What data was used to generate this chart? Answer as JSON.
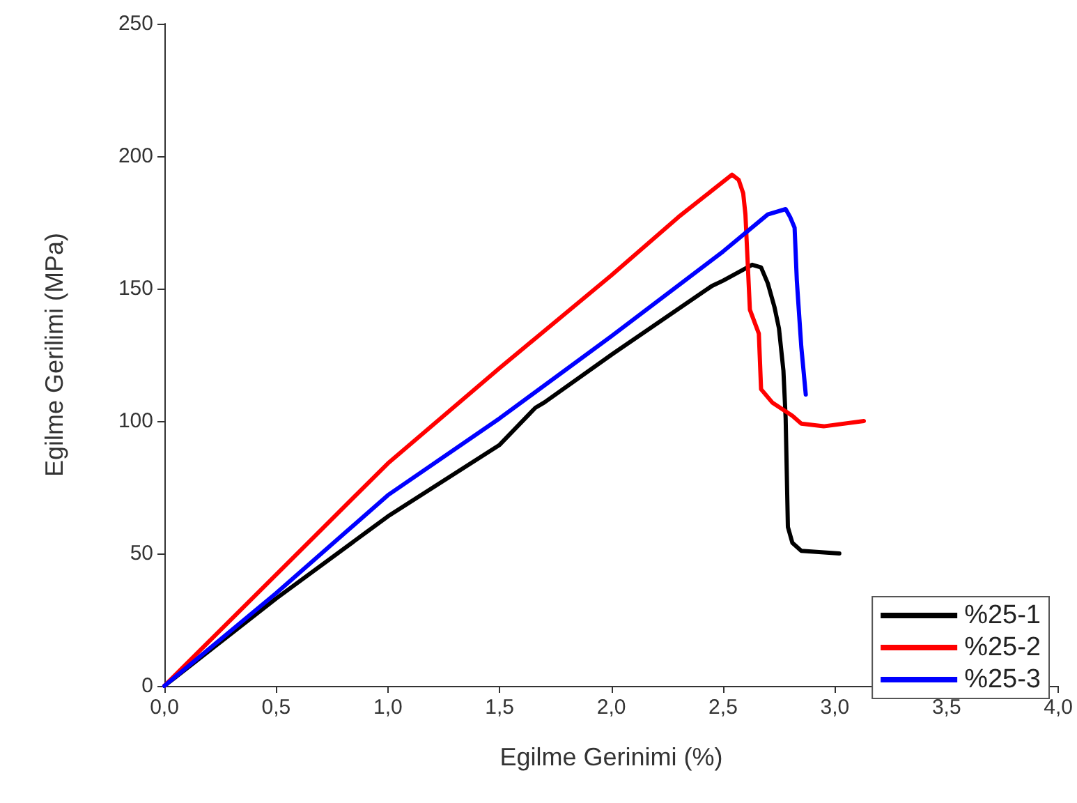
{
  "chart_data": {
    "type": "line",
    "xlabel": "Egilme Gerinimi (%)",
    "ylabel": "Egilme Gerilimi (MPa)",
    "xlim": [
      0,
      4
    ],
    "xticks": [
      {
        "value": 0,
        "label": "0,0"
      },
      {
        "value": 0.5,
        "label": "0,5"
      },
      {
        "value": 1,
        "label": "1,0"
      },
      {
        "value": 1.5,
        "label": "1,5"
      },
      {
        "value": 2,
        "label": "2,0"
      },
      {
        "value": 2.5,
        "label": "2,5"
      },
      {
        "value": 3,
        "label": "3,0"
      },
      {
        "value": 3.5,
        "label": "3,5"
      },
      {
        "value": 4,
        "label": "4,0"
      }
    ],
    "ylim": [
      0,
      250
    ],
    "yticks": [
      0,
      50,
      100,
      150,
      200,
      250
    ],
    "grid": false,
    "legend": "bottom right",
    "marker": "none",
    "line_style": "solid",
    "series": [
      {
        "name": "%25-1",
        "color": "#000000",
        "x": [
          0,
          0.5,
          1.0,
          1.5,
          1.66,
          1.7,
          2.0,
          2.45,
          2.5,
          2.63,
          2.67,
          2.7,
          2.73,
          2.75,
          2.77,
          2.78,
          2.79,
          2.81,
          2.85,
          3.02
        ],
        "values": [
          0,
          33,
          64,
          91,
          105,
          107,
          125,
          151,
          153,
          159,
          158,
          152,
          143,
          135,
          119,
          101,
          60,
          54,
          51,
          50
        ]
      },
      {
        "name": "%25-2",
        "color": "#ff0000",
        "x": [
          0,
          0.5,
          1.0,
          1.5,
          2.0,
          2.3,
          2.45,
          2.54,
          2.57,
          2.59,
          2.6,
          2.62,
          2.66,
          2.67,
          2.72,
          2.81,
          2.85,
          2.95,
          3.13
        ],
        "values": [
          0,
          42,
          84,
          120,
          155,
          177,
          187,
          193,
          191,
          186,
          178,
          142,
          133,
          112,
          107,
          102,
          99,
          98,
          100
        ]
      },
      {
        "name": "%25-3",
        "color": "#0000ff",
        "x": [
          0,
          0.5,
          1.0,
          1.5,
          2.0,
          2.5,
          2.7,
          2.78,
          2.8,
          2.82,
          2.83,
          2.85,
          2.87
        ],
        "values": [
          0,
          35,
          72,
          101,
          132,
          164,
          178,
          180,
          177,
          173,
          153,
          128,
          110
        ]
      }
    ]
  }
}
